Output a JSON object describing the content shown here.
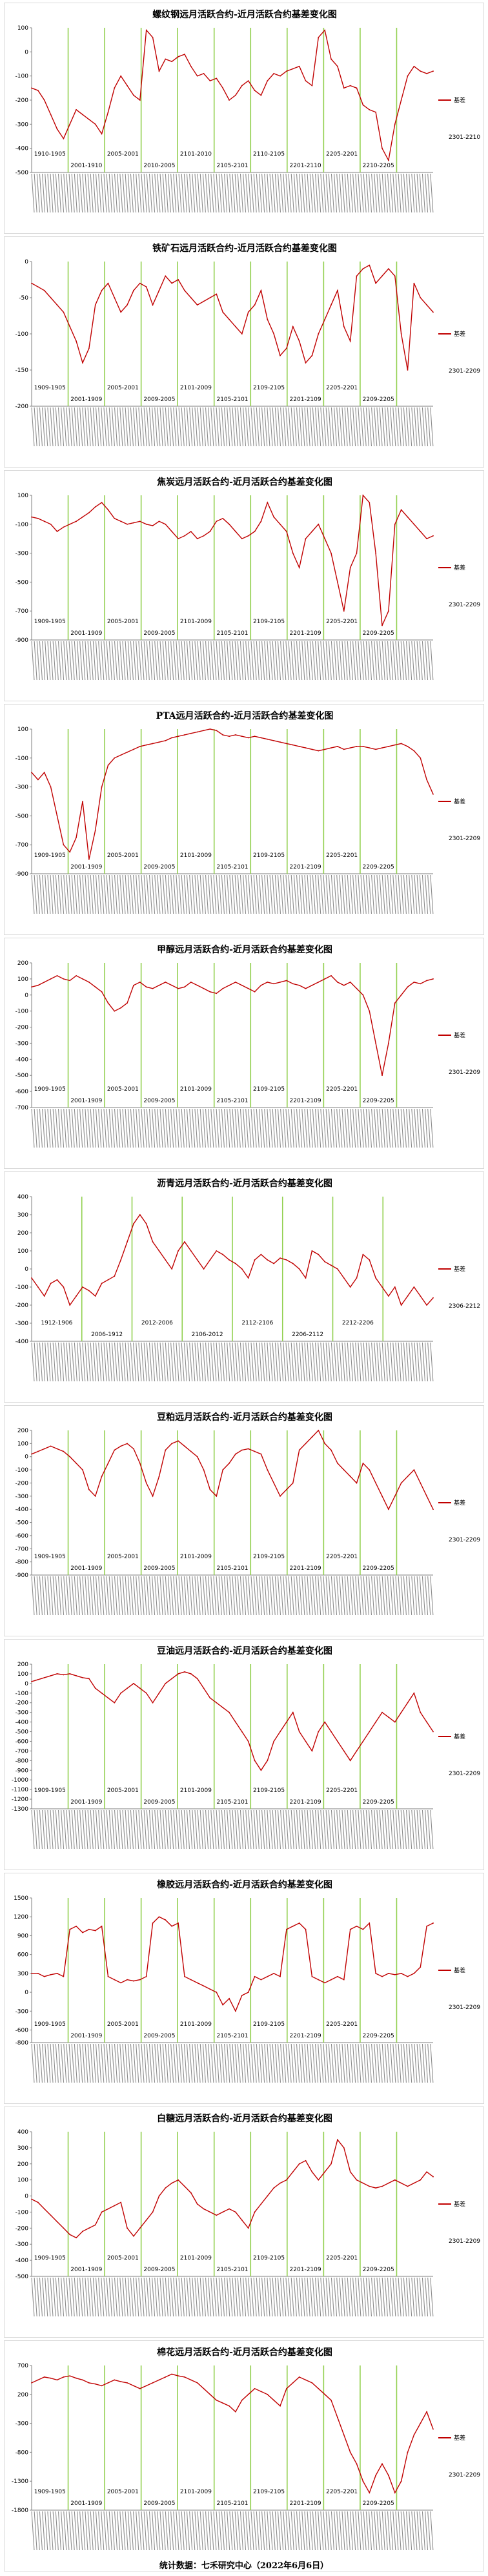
{
  "footer": "统计数据：七禾研究中心（2022年6月6日）",
  "colors": {
    "line": "#c00000",
    "divider": "#92d050",
    "axis": "#7f7f7f",
    "text": "#000000"
  },
  "chart_data": [
    {
      "type": "line",
      "title": "螺纹钢远月活跃合约-近月活跃合约基差变化图",
      "legend": "基差",
      "ylim": [
        -500,
        100
      ],
      "yticks": [
        100,
        0,
        -100,
        -200,
        -300,
        -400,
        -500
      ],
      "period_labels": [
        "1910-1905",
        "2001-1910",
        "2005-2001",
        "2010-2005",
        "2101-2010",
        "2105-2101",
        "2110-2105",
        "2201-2110",
        "2205-2201",
        "2210-2205",
        "2301-2210"
      ],
      "series": [
        {
          "name": "基差",
          "values": [
            -150,
            -160,
            -200,
            -260,
            -320,
            -360,
            -300,
            -240,
            -260,
            -280,
            -300,
            -340,
            -250,
            -150,
            -100,
            -140,
            -180,
            -200,
            90,
            60,
            -80,
            -30,
            -40,
            -20,
            -10,
            -60,
            -100,
            -90,
            -120,
            -110,
            -150,
            -200,
            -180,
            -140,
            -120,
            -160,
            -180,
            -120,
            -90,
            -100,
            -80,
            -70,
            -60,
            -120,
            -140,
            60,
            90,
            -30,
            -60,
            -150,
            -140,
            -150,
            -220,
            -240,
            -250,
            -400,
            -450,
            -300,
            -200,
            -100,
            -60,
            -80,
            -90,
            -80
          ]
        }
      ]
    },
    {
      "type": "line",
      "title": "铁矿石远月活跃合约-近月活跃合约基差变化图",
      "legend": "基差",
      "ylim": [
        -200,
        0
      ],
      "yticks": [
        0,
        -50,
        -100,
        -150,
        -200
      ],
      "period_labels": [
        "1909-1905",
        "2001-1909",
        "2005-2001",
        "2009-2005",
        "2101-2009",
        "2105-2101",
        "2109-2105",
        "2201-2109",
        "2205-2201",
        "2209-2205",
        "2301-2209"
      ],
      "series": [
        {
          "name": "基差",
          "values": [
            -30,
            -35,
            -40,
            -50,
            -60,
            -70,
            -90,
            -110,
            -140,
            -120,
            -60,
            -40,
            -30,
            -50,
            -70,
            -60,
            -40,
            -30,
            -35,
            -60,
            -40,
            -20,
            -30,
            -25,
            -40,
            -50,
            -60,
            -55,
            -50,
            -45,
            -70,
            -80,
            -90,
            -100,
            -70,
            -60,
            -40,
            -80,
            -100,
            -130,
            -120,
            -90,
            -110,
            -140,
            -130,
            -100,
            -80,
            -60,
            -40,
            -90,
            -110,
            -20,
            -10,
            -5,
            -30,
            -20,
            -10,
            -20,
            -100,
            -150,
            -30,
            -50,
            -60,
            -70
          ]
        }
      ]
    },
    {
      "type": "line",
      "title": "焦炭远月活跃合约-近月活跃合约基差变化图",
      "legend": "基差",
      "ylim": [
        -900,
        100
      ],
      "yticks": [
        100,
        -100,
        -300,
        -500,
        -700,
        -900
      ],
      "period_labels": [
        "1909-1905",
        "2001-1909",
        "2005-2001",
        "2009-2005",
        "2101-2009",
        "2105-2101",
        "2109-2105",
        "2201-2109",
        "2205-2201",
        "2209-2205",
        "2301-2209"
      ],
      "series": [
        {
          "name": "基差",
          "values": [
            -50,
            -60,
            -80,
            -100,
            -150,
            -120,
            -100,
            -80,
            -50,
            -20,
            20,
            50,
            0,
            -60,
            -80,
            -100,
            -90,
            -80,
            -100,
            -110,
            -80,
            -100,
            -150,
            -200,
            -180,
            -150,
            -200,
            -180,
            -150,
            -80,
            -60,
            -100,
            -150,
            -200,
            -180,
            -150,
            -80,
            50,
            -50,
            -100,
            -150,
            -300,
            -400,
            -200,
            -150,
            -100,
            -200,
            -300,
            -500,
            -700,
            -400,
            -300,
            100,
            50,
            -300,
            -800,
            -700,
            -100,
            0,
            -50,
            -100,
            -150,
            -200,
            -180
          ]
        }
      ]
    },
    {
      "type": "line",
      "title": "PTA远月活跃合约-近月活跃合约基差变化图",
      "legend": "基差",
      "ylim": [
        -900,
        100
      ],
      "yticks": [
        100,
        -100,
        -300,
        -500,
        -700,
        -900
      ],
      "period_labels": [
        "1909-1905",
        "2001-1909",
        "2005-2001",
        "2009-2005",
        "2101-2009",
        "2105-2101",
        "2109-2105",
        "2201-2109",
        "2205-2201",
        "2209-2205",
        "2301-2209"
      ],
      "series": [
        {
          "name": "基差",
          "values": [
            -200,
            -250,
            -200,
            -300,
            -500,
            -700,
            -750,
            -650,
            -400,
            -800,
            -600,
            -300,
            -150,
            -100,
            -80,
            -60,
            -40,
            -20,
            -10,
            0,
            10,
            20,
            40,
            50,
            60,
            70,
            80,
            90,
            100,
            90,
            60,
            50,
            60,
            50,
            40,
            50,
            40,
            30,
            20,
            10,
            0,
            -10,
            -20,
            -30,
            -40,
            -50,
            -40,
            -30,
            -20,
            -40,
            -30,
            -20,
            -20,
            -30,
            -40,
            -30,
            -20,
            -10,
            0,
            -20,
            -50,
            -100,
            -250,
            -350
          ]
        }
      ]
    },
    {
      "type": "line",
      "title": "甲醇远月活跃合约-近月活跃合约基差变化图",
      "legend": "基差",
      "ylim": [
        -700,
        200
      ],
      "yticks": [
        200,
        100,
        0,
        -100,
        -200,
        -300,
        -400,
        -500,
        -600,
        -700
      ],
      "period_labels": [
        "1909-1905",
        "2001-1909",
        "2005-2001",
        "2009-2005",
        "2101-2009",
        "2105-2101",
        "2109-2105",
        "2201-2109",
        "2205-2201",
        "2209-2205",
        "2301-2209"
      ],
      "series": [
        {
          "name": "基差",
          "values": [
            50,
            60,
            80,
            100,
            120,
            100,
            90,
            120,
            100,
            80,
            50,
            20,
            -50,
            -100,
            -80,
            -50,
            60,
            80,
            50,
            40,
            60,
            80,
            60,
            40,
            50,
            80,
            60,
            40,
            20,
            10,
            40,
            60,
            80,
            60,
            40,
            20,
            60,
            80,
            70,
            80,
            90,
            70,
            60,
            40,
            60,
            80,
            100,
            120,
            80,
            60,
            80,
            40,
            0,
            -100,
            -300,
            -500,
            -300,
            -50,
            0,
            50,
            80,
            70,
            90,
            100
          ]
        }
      ]
    },
    {
      "type": "line",
      "title": "沥青远月活跃合约-近月活跃合约基差变化图",
      "legend": "基差",
      "ylim": [
        -400,
        400
      ],
      "yticks": [
        400,
        300,
        200,
        100,
        0,
        -100,
        -200,
        -300,
        -400
      ],
      "period_labels": [
        "1912-1906",
        "2006-1912",
        "2012-2006",
        "2106-2012",
        "2112-2106",
        "2206-2112",
        "2212-2206",
        "2306-2212"
      ],
      "series": [
        {
          "name": "基差",
          "values": [
            -50,
            -100,
            -150,
            -80,
            -60,
            -100,
            -200,
            -150,
            -100,
            -120,
            -150,
            -80,
            -60,
            -40,
            50,
            150,
            250,
            300,
            250,
            150,
            100,
            50,
            0,
            100,
            150,
            100,
            50,
            0,
            50,
            100,
            80,
            50,
            30,
            0,
            -50,
            50,
            80,
            50,
            30,
            60,
            50,
            30,
            0,
            -50,
            100,
            80,
            40,
            20,
            0,
            -50,
            -100,
            -50,
            80,
            50,
            -50,
            -100,
            -150,
            -100,
            -200,
            -150,
            -100,
            -150,
            -200,
            -160
          ]
        }
      ]
    },
    {
      "type": "line",
      "title": "豆粕远月活跃合约-近月活跃合约基差变化图",
      "legend": "基差",
      "ylim": [
        -900,
        200
      ],
      "yticks": [
        200,
        100,
        0,
        -100,
        -200,
        -300,
        -400,
        -500,
        -600,
        -700,
        -800,
        -900
      ],
      "period_labels": [
        "1909-1905",
        "2001-1909",
        "2005-2001",
        "2009-2005",
        "2101-2009",
        "2105-2101",
        "2109-2105",
        "2201-2109",
        "2205-2201",
        "2209-2205",
        "2301-2209"
      ],
      "series": [
        {
          "name": "基差",
          "values": [
            20,
            40,
            60,
            80,
            60,
            40,
            0,
            -50,
            -100,
            -250,
            -300,
            -150,
            -50,
            50,
            80,
            100,
            60,
            -50,
            -200,
            -300,
            -150,
            50,
            100,
            120,
            80,
            40,
            0,
            -100,
            -250,
            -300,
            -100,
            -50,
            20,
            50,
            60,
            40,
            20,
            -100,
            -200,
            -300,
            -250,
            -200,
            50,
            100,
            150,
            200,
            100,
            50,
            -50,
            -100,
            -150,
            -200,
            -50,
            -100,
            -200,
            -300,
            -400,
            -300,
            -200,
            -150,
            -100,
            -200,
            -300,
            -400
          ]
        }
      ]
    },
    {
      "type": "line",
      "title": "豆油远月活跃合约-近月活跃合约基差变化图",
      "legend": "基差",
      "ylim": [
        -1300,
        200
      ],
      "yticks": [
        200,
        100,
        0,
        -100,
        -200,
        -300,
        -400,
        -500,
        -600,
        -700,
        -800,
        -900,
        -1000,
        -1100,
        -1200,
        -1300
      ],
      "period_labels": [
        "1909-1905",
        "2001-1909",
        "2005-2001",
        "2009-2005",
        "2101-2009",
        "2105-2101",
        "2109-2105",
        "2201-2109",
        "2205-2201",
        "2209-2205",
        "2301-2209"
      ],
      "series": [
        {
          "name": "基差",
          "values": [
            20,
            40,
            60,
            80,
            100,
            90,
            100,
            80,
            60,
            50,
            -50,
            -100,
            -150,
            -200,
            -100,
            -50,
            0,
            -50,
            -100,
            -200,
            -100,
            0,
            50,
            100,
            120,
            100,
            50,
            -50,
            -150,
            -200,
            -250,
            -300,
            -400,
            -500,
            -600,
            -800,
            -900,
            -800,
            -600,
            -500,
            -400,
            -300,
            -500,
            -600,
            -700,
            -500,
            -400,
            -500,
            -600,
            -700,
            -800,
            -700,
            -600,
            -500,
            -400,
            -300,
            -350,
            -400,
            -300,
            -200,
            -100,
            -300,
            -400,
            -500
          ]
        }
      ]
    },
    {
      "type": "line",
      "title": "橡胶远月活跃合约-近月活跃合约基差变化图",
      "legend": "基差",
      "ylim": [
        -800,
        1500
      ],
      "yticks": [
        1500,
        1200,
        900,
        600,
        300,
        0,
        -300,
        -600,
        -800
      ],
      "period_labels": [
        "1909-1905",
        "2001-1909",
        "2005-2001",
        "2009-2005",
        "2101-2009",
        "2105-2101",
        "2109-2105",
        "2201-2109",
        "2205-2201",
        "2209-2205",
        "2301-2209"
      ],
      "series": [
        {
          "name": "基差",
          "values": [
            300,
            300,
            250,
            280,
            300,
            250,
            1000,
            1050,
            950,
            1000,
            980,
            1050,
            250,
            200,
            150,
            200,
            180,
            200,
            250,
            1100,
            1200,
            1150,
            1050,
            1100,
            250,
            200,
            150,
            100,
            50,
            0,
            -200,
            -100,
            -300,
            -50,
            0,
            250,
            200,
            250,
            300,
            250,
            1000,
            1050,
            1100,
            1000,
            250,
            200,
            150,
            200,
            250,
            200,
            1000,
            1050,
            1000,
            1100,
            300,
            250,
            300,
            280,
            300,
            250,
            300,
            400,
            1050,
            1100
          ]
        }
      ]
    },
    {
      "type": "line",
      "title": "白糖远月活跃合约-近月活跃合约基差变化图",
      "legend": "基差",
      "ylim": [
        -500,
        400
      ],
      "yticks": [
        400,
        300,
        200,
        100,
        0,
        -100,
        -200,
        -300,
        -400,
        -500
      ],
      "period_labels": [
        "1909-1905",
        "2001-1909",
        "2005-2001",
        "2009-2005",
        "2101-2009",
        "2105-2101",
        "2109-2105",
        "2201-2109",
        "2205-2201",
        "2209-2205",
        "2301-2209"
      ],
      "series": [
        {
          "name": "基差",
          "values": [
            -20,
            -40,
            -80,
            -120,
            -160,
            -200,
            -240,
            -260,
            -220,
            -200,
            -180,
            -100,
            -80,
            -60,
            -40,
            -200,
            -250,
            -200,
            -150,
            -100,
            0,
            50,
            80,
            100,
            60,
            20,
            -50,
            -80,
            -100,
            -120,
            -100,
            -80,
            -100,
            -150,
            -200,
            -100,
            -50,
            0,
            50,
            80,
            100,
            150,
            200,
            220,
            150,
            100,
            150,
            200,
            350,
            300,
            150,
            100,
            80,
            60,
            50,
            60,
            80,
            100,
            80,
            60,
            80,
            100,
            150,
            120
          ]
        }
      ]
    },
    {
      "type": "line",
      "title": "棉花远月活跃合约-近月活跃合约基差变化图",
      "legend": "基差",
      "ylim": [
        -1800,
        700
      ],
      "yticks": [
        700,
        200,
        -300,
        -800,
        -1300,
        -1800
      ],
      "period_labels": [
        "1909-1905",
        "2001-1909",
        "2005-2001",
        "2009-2005",
        "2101-2009",
        "2105-2101",
        "2109-2105",
        "2201-2109",
        "2205-2201",
        "2209-2205",
        "2301-2209"
      ],
      "series": [
        {
          "name": "基差",
          "values": [
            400,
            450,
            500,
            480,
            450,
            500,
            520,
            480,
            450,
            400,
            380,
            350,
            400,
            450,
            420,
            400,
            350,
            300,
            350,
            400,
            450,
            500,
            550,
            520,
            500,
            450,
            400,
            300,
            200,
            100,
            50,
            0,
            -100,
            100,
            200,
            300,
            250,
            200,
            100,
            0,
            300,
            400,
            500,
            450,
            400,
            300,
            200,
            100,
            -200,
            -500,
            -800,
            -1000,
            -1300,
            -1500,
            -1200,
            -1000,
            -1200,
            -1500,
            -1300,
            -800,
            -500,
            -300,
            -100,
            -400
          ]
        }
      ]
    }
  ]
}
